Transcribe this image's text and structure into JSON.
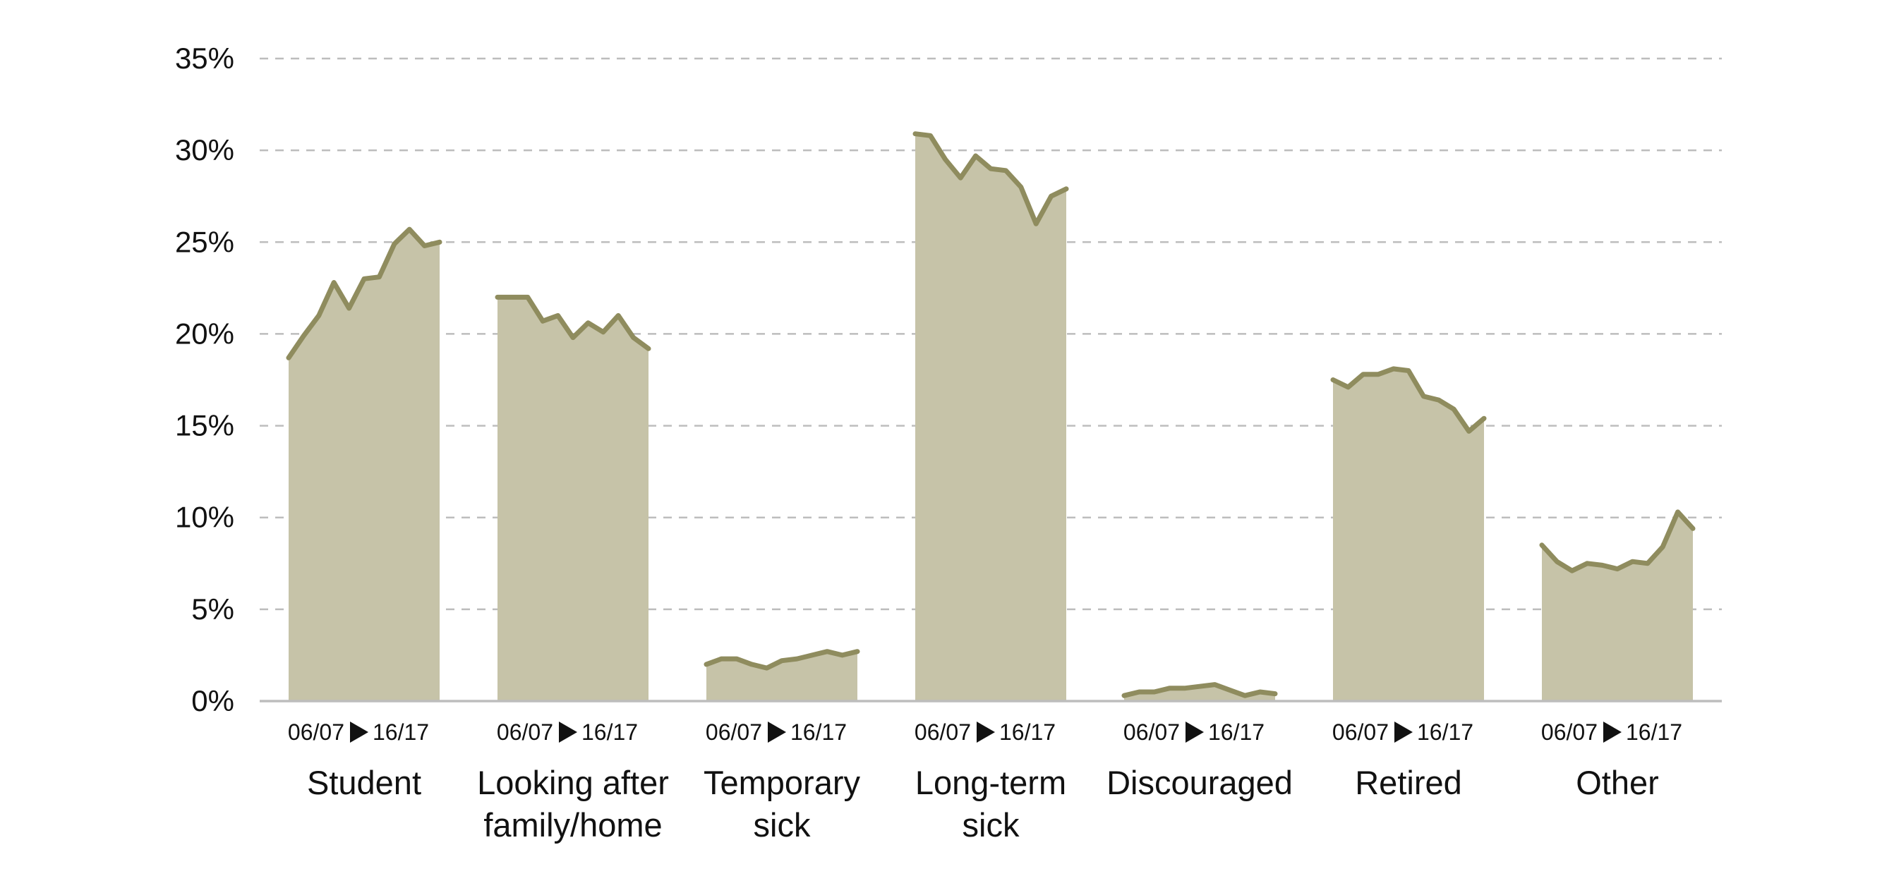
{
  "chart_data": {
    "type": "area",
    "title": "",
    "xlabel": "",
    "ylabel": "",
    "ylim": [
      0,
      35
    ],
    "yticks": [
      "0%",
      "5%",
      "10%",
      "15%",
      "20%",
      "25%",
      "30%",
      "35%"
    ],
    "grid": "horizontal-dashed",
    "legend": "none",
    "fill_color": "#c6c3a8",
    "line_color": "#8f8c5e",
    "period_start": "06/07",
    "period_end": "16/17",
    "categories": [
      {
        "label": [
          "Student"
        ],
        "values": [
          18.7,
          19.9,
          21.0,
          22.8,
          21.4,
          23.0,
          23.1,
          24.9,
          25.7,
          24.8,
          25.0
        ]
      },
      {
        "label": [
          "Looking after",
          "family/home"
        ],
        "values": [
          22.0,
          22.0,
          22.0,
          20.7,
          21.0,
          19.8,
          20.6,
          20.1,
          21.0,
          19.8,
          19.2
        ]
      },
      {
        "label": [
          "Temporary",
          "sick"
        ],
        "values": [
          2.0,
          2.3,
          2.3,
          2.0,
          1.8,
          2.2,
          2.3,
          2.5,
          2.7,
          2.5,
          2.7
        ]
      },
      {
        "label": [
          "Long-term",
          "sick"
        ],
        "values": [
          30.9,
          30.8,
          29.5,
          28.5,
          29.7,
          29.0,
          28.9,
          28.0,
          26.0,
          27.5,
          27.9
        ]
      },
      {
        "label": [
          "Discouraged"
        ],
        "values": [
          0.3,
          0.5,
          0.5,
          0.7,
          0.7,
          0.8,
          0.9,
          0.6,
          0.3,
          0.5,
          0.4
        ]
      },
      {
        "label": [
          "Retired"
        ],
        "values": [
          17.5,
          17.1,
          17.8,
          17.8,
          18.1,
          18.0,
          16.6,
          16.4,
          15.9,
          14.7,
          15.4
        ]
      },
      {
        "label": [
          "Other"
        ],
        "values": [
          8.5,
          7.6,
          7.1,
          7.5,
          7.4,
          7.2,
          7.6,
          7.5,
          8.4,
          10.3,
          9.4
        ]
      }
    ]
  }
}
